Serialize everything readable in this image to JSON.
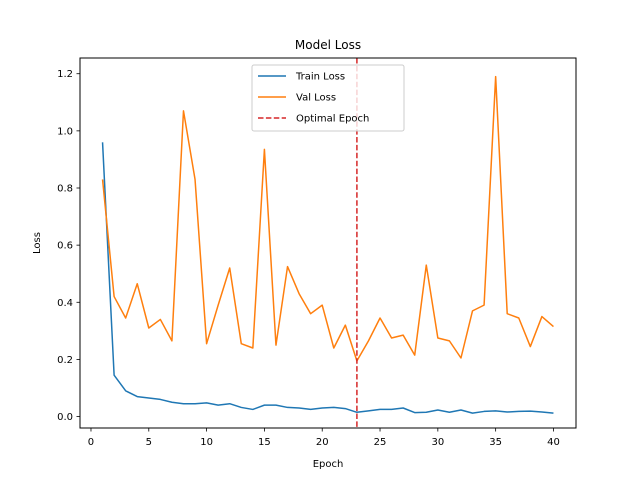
{
  "chart_data": {
    "type": "line",
    "title": "Model Loss",
    "xlabel": "Epoch",
    "ylabel": "Loss",
    "xlim": [
      -0.95,
      41.95
    ],
    "ylim": [
      -0.04,
      1.255
    ],
    "xticks": [
      0,
      5,
      10,
      15,
      20,
      25,
      30,
      35,
      40
    ],
    "yticks": [
      0.0,
      0.2,
      0.4,
      0.6,
      0.8,
      1.0,
      1.2
    ],
    "x": [
      1,
      2,
      3,
      4,
      5,
      6,
      7,
      8,
      9,
      10,
      11,
      12,
      13,
      14,
      15,
      16,
      17,
      18,
      19,
      20,
      21,
      22,
      23,
      24,
      25,
      26,
      27,
      28,
      29,
      30,
      31,
      32,
      33,
      34,
      35,
      36,
      37,
      38,
      39,
      40
    ],
    "series": [
      {
        "name": "Train Loss",
        "color": "#1f77b4",
        "values": [
          0.96,
          0.145,
          0.09,
          0.07,
          0.065,
          0.06,
          0.05,
          0.045,
          0.045,
          0.048,
          0.04,
          0.045,
          0.032,
          0.025,
          0.04,
          0.04,
          0.032,
          0.03,
          0.025,
          0.03,
          0.032,
          0.028,
          0.015,
          0.02,
          0.025,
          0.025,
          0.03,
          0.014,
          0.015,
          0.023,
          0.015,
          0.023,
          0.012,
          0.018,
          0.02,
          0.016,
          0.018,
          0.019,
          0.016,
          0.012
        ]
      },
      {
        "name": "Val Loss",
        "color": "#ff7f0e",
        "values": [
          0.83,
          0.42,
          0.345,
          0.465,
          0.31,
          0.34,
          0.265,
          1.07,
          0.83,
          0.255,
          0.39,
          0.52,
          0.255,
          0.24,
          0.935,
          0.25,
          0.525,
          0.43,
          0.36,
          0.39,
          0.24,
          0.32,
          0.195,
          0.265,
          0.345,
          0.275,
          0.285,
          0.215,
          0.53,
          0.275,
          0.265,
          0.205,
          0.37,
          0.39,
          1.19,
          0.36,
          0.345,
          0.245,
          0.35,
          0.315
        ]
      }
    ],
    "vline": {
      "name": "Optimal Epoch",
      "x": 23,
      "color": "#d62728",
      "style": "dashed"
    },
    "legend": {
      "placement": "upper-center",
      "entries": [
        "Train Loss",
        "Val Loss",
        "Optimal Epoch"
      ]
    },
    "grid": false
  }
}
